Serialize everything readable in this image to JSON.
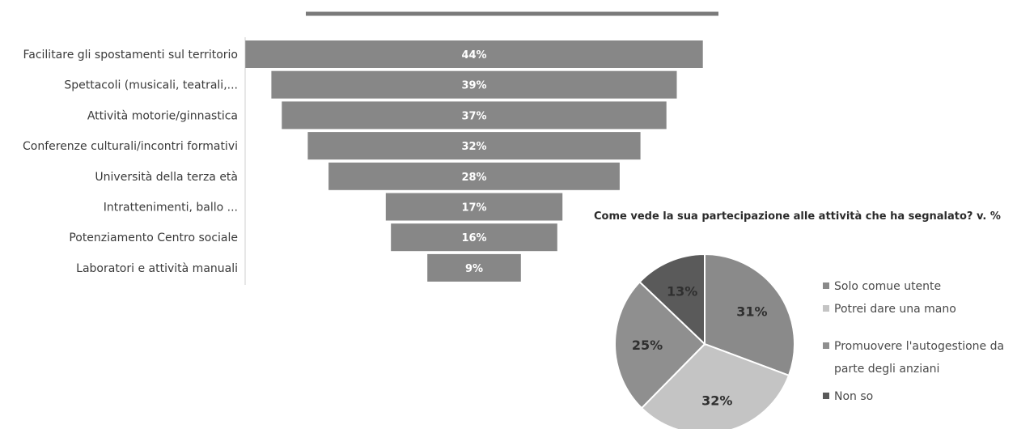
{
  "colors": {
    "bar": "#878787",
    "top_line": "#7a7a7a",
    "axis": "#cfcfcf"
  },
  "chart_data": [
    {
      "type": "bar",
      "orientation": "horizontal-centered",
      "categories": [
        "Facilitare gli spostamenti sul territorio",
        "Spettacoli (musicali, teatrali,...",
        "Attività motorie/ginnastica",
        "Conferenze culturali/incontri formativi",
        "Università della terza età",
        "Intrattenimenti, ballo ...",
        "Potenziamento Centro sociale",
        "Laboratori e attività manuali"
      ],
      "values": [
        44,
        39,
        37,
        32,
        28,
        17,
        16,
        9
      ],
      "value_labels": [
        "44%",
        "39%",
        "37%",
        "32%",
        "28%",
        "17%",
        "16%",
        "9%"
      ]
    },
    {
      "type": "pie",
      "title": "Come vede la sua partecipazione alle attività che ha segnalato?  v. %",
      "slices": [
        {
          "label": "Solo comue utente",
          "value": 31,
          "value_label": "31%",
          "color": "#8a8a8a"
        },
        {
          "label": "Potrei dare una mano",
          "value": 32,
          "value_label": "32%",
          "color": "#c4c4c4"
        },
        {
          "label": "Promuovere l'autogestione da parte degli anziani",
          "value": 25,
          "value_label": "25%",
          "color": "#8f8f8f"
        },
        {
          "label": "Non so",
          "value": 13,
          "value_label": "13%",
          "color": "#5a5a5a"
        }
      ]
    }
  ]
}
